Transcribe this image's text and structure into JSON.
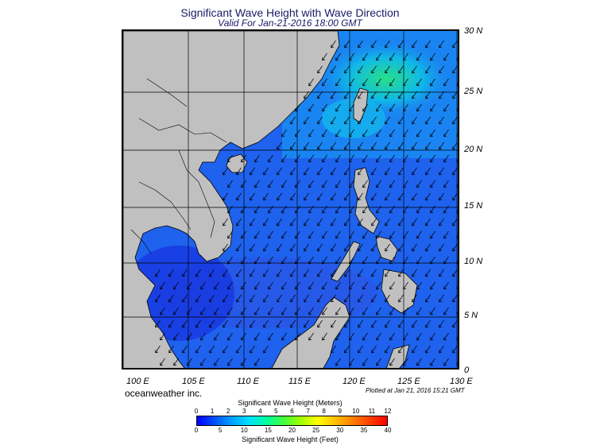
{
  "header": {
    "title": "Significant Wave Height with Wave Direction",
    "subtitle": "Valid For Jan-21-2016 18:00 GMT"
  },
  "map": {
    "lon_labels": [
      "100 E",
      "105 E",
      "110 E",
      "115 E",
      "120 E",
      "125 E",
      "130 E"
    ],
    "lat_labels": [
      "30 N",
      "25 N",
      "20 N",
      "15 N",
      "10 N",
      "5 N",
      "0"
    ],
    "land_color": "#c0c0c0",
    "sea_color_low": "#1f3ff0",
    "sea_color_high": "#27e08a"
  },
  "footer": {
    "brand": "oceanweather inc.",
    "plotted": "Plotted at Jan 21, 2016 15:21 GMT"
  },
  "legend": {
    "meters_title": "Significant Wave Height (Meters)",
    "feet_title": "Significant Wave Height (Feet)",
    "meters_ticks": [
      "0",
      "1",
      "2",
      "3",
      "4",
      "5",
      "6",
      "7",
      "8",
      "9",
      "10",
      "11",
      "12"
    ],
    "feet_ticks": [
      "0",
      "5",
      "10",
      "15",
      "20",
      "25",
      "30",
      "35",
      "40"
    ],
    "colors": [
      "#0000ff",
      "#0050ff",
      "#00a0ff",
      "#00e0ff",
      "#00ffa0",
      "#40ff40",
      "#a0ff00",
      "#ffff00",
      "#ffc000",
      "#ff8000",
      "#ff4000",
      "#ff0000"
    ]
  }
}
